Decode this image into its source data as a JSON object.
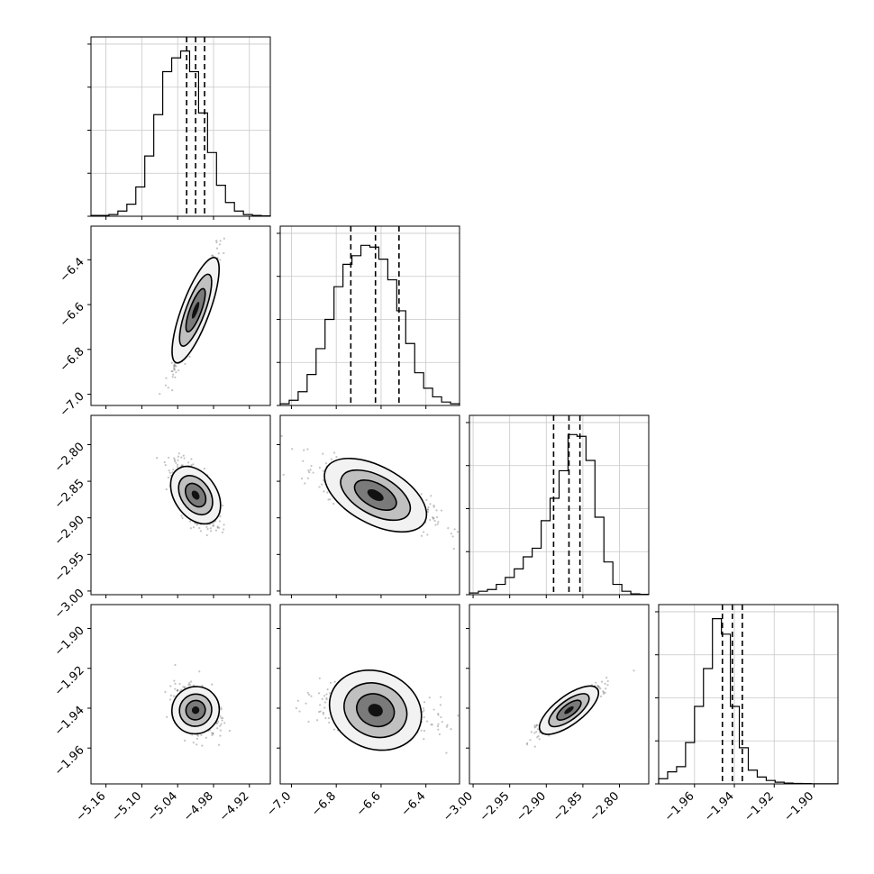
{
  "chart_data": {
    "type": "corner",
    "title": "",
    "parameters": [
      {
        "range": [
          -5.185,
          -4.885
        ],
        "ticks": [
          -5.16,
          -5.1,
          -5.04,
          -4.98,
          -4.92
        ],
        "tick_labels": [
          "−5.16",
          "−5.10",
          "−5.04",
          "−4.98",
          "−4.92"
        ],
        "median": -5.01,
        "q16": -5.025,
        "q84": -4.995
      },
      {
        "range": [
          -7.05,
          -6.25
        ],
        "ticks": [
          -7.0,
          -6.8,
          -6.6,
          -6.4
        ],
        "tick_labels": [
          "−7.0",
          "−6.8",
          "−6.6",
          "−6.4"
        ],
        "median": -6.625,
        "q16": -6.735,
        "q84": -6.52
      },
      {
        "range": [
          -3.005,
          -2.76
        ],
        "ticks": [
          -3.0,
          -2.95,
          -2.9,
          -2.85,
          -2.8
        ],
        "tick_labels": [
          "−3.00",
          "−2.95",
          "−2.90",
          "−2.85",
          "−2.80"
        ],
        "median": -2.869,
        "q16": -2.89,
        "q84": -2.854
      },
      {
        "range": [
          -1.978,
          -1.888
        ],
        "ticks": [
          -1.96,
          -1.94,
          -1.92,
          -1.9
        ],
        "tick_labels": [
          "−1.96",
          "−1.94",
          "−1.92",
          "−1.90"
        ],
        "median": -1.941,
        "q16": -1.946,
        "q84": -1.936
      }
    ],
    "histograms": [
      {
        "bins": [
          -5.185,
          -4.885
        ],
        "counts": [
          0.005,
          0.005,
          0.01,
          0.03,
          0.07,
          0.17,
          0.35,
          0.59,
          0.84,
          0.92,
          0.96,
          0.84,
          0.6,
          0.37,
          0.18,
          0.08,
          0.03,
          0.01,
          0.005,
          0.002
        ]
      },
      {
        "bins": [
          -7.05,
          -6.25
        ],
        "counts": [
          0.01,
          0.03,
          0.08,
          0.18,
          0.33,
          0.5,
          0.69,
          0.82,
          0.87,
          0.93,
          0.92,
          0.85,
          0.73,
          0.55,
          0.36,
          0.19,
          0.1,
          0.05,
          0.02,
          0.01
        ]
      },
      {
        "bins": [
          -3.005,
          -2.76
        ],
        "counts": [
          0.01,
          0.02,
          0.03,
          0.06,
          0.1,
          0.15,
          0.22,
          0.27,
          0.43,
          0.56,
          0.72,
          0.93,
          0.92,
          0.78,
          0.45,
          0.19,
          0.06,
          0.02,
          0.005,
          0.002
        ]
      },
      {
        "bins": [
          -1.978,
          -1.888
        ],
        "counts": [
          0.03,
          0.07,
          0.1,
          0.24,
          0.45,
          0.67,
          0.96,
          0.87,
          0.45,
          0.21,
          0.08,
          0.04,
          0.02,
          0.01,
          0.005,
          0.003,
          0.002,
          0.001,
          0.001,
          0.001
        ]
      }
    ],
    "correlations": [
      {
        "x": 0,
        "y": 1,
        "rho": 0.96
      },
      {
        "x": 0,
        "y": 2,
        "rho": -0.62
      },
      {
        "x": 1,
        "y": 2,
        "rho": -0.72
      },
      {
        "x": 0,
        "y": 3,
        "rho": -0.25
      },
      {
        "x": 1,
        "y": 3,
        "rho": -0.35
      },
      {
        "x": 2,
        "y": 3,
        "rho": 0.9
      }
    ],
    "grid": true,
    "quantile_lines": "dashed"
  }
}
